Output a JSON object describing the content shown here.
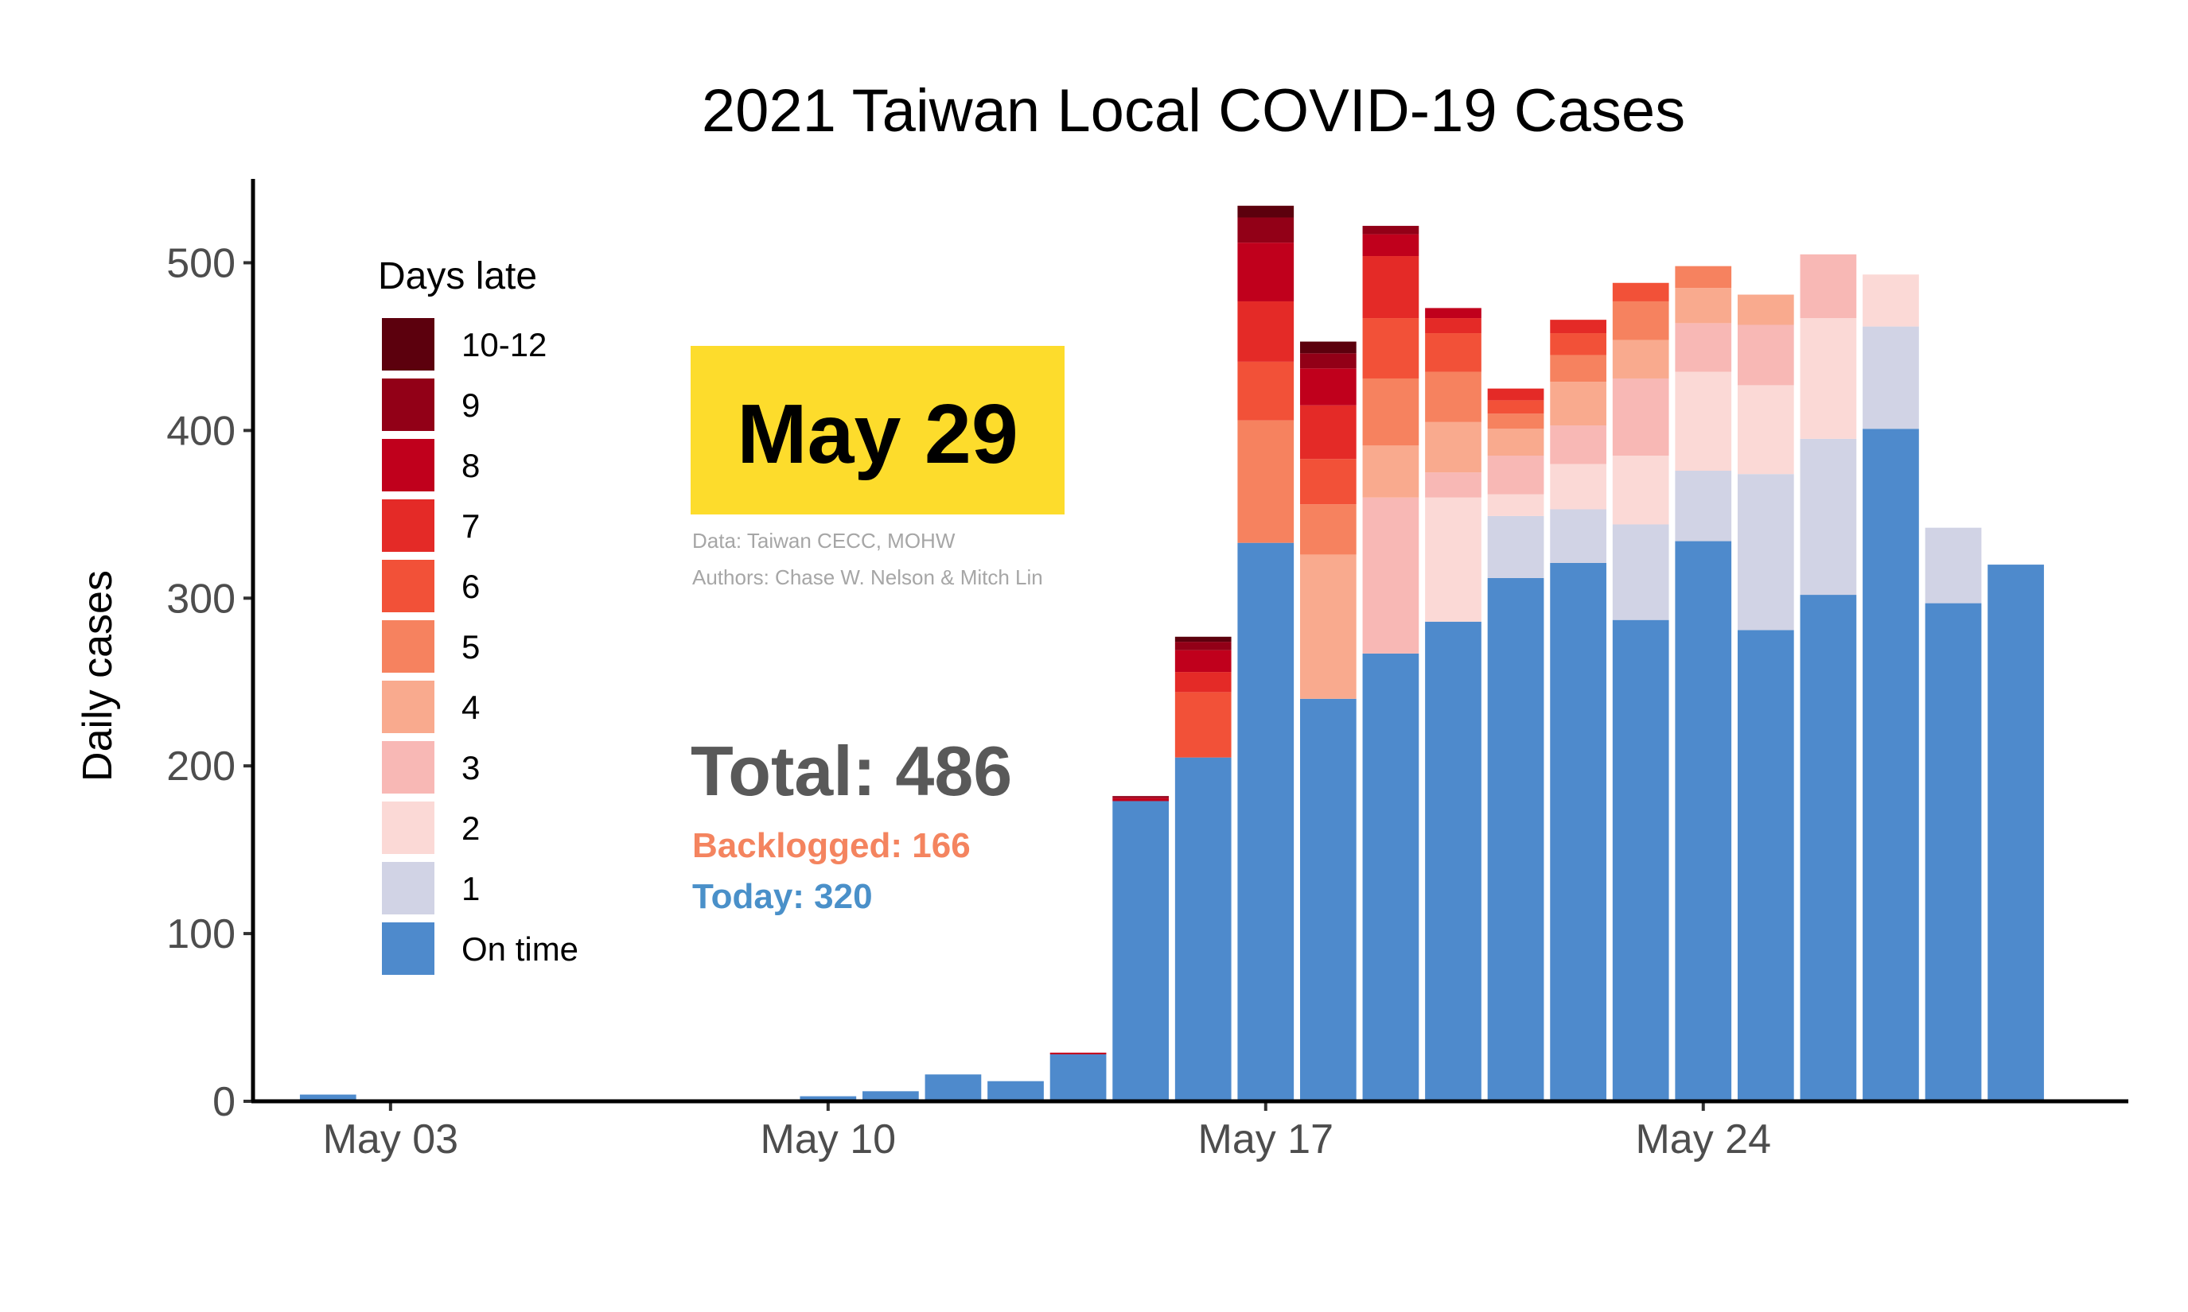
{
  "chart_data": {
    "type": "bar",
    "stacked": true,
    "title": "2021 Taiwan Local COVID-19 Cases",
    "xlabel": "",
    "ylabel": "Daily cases",
    "ylim": [
      0,
      550
    ],
    "yticks": [
      0,
      100,
      200,
      300,
      400,
      500
    ],
    "xticks": [
      {
        "label": "May 03",
        "day": 3
      },
      {
        "label": "May 10",
        "day": 10
      },
      {
        "label": "May 17",
        "day": 17
      },
      {
        "label": "May 24",
        "day": 24
      }
    ],
    "xlim_days": [
      0.8,
      30.8
    ],
    "days": [
      2,
      3,
      4,
      5,
      6,
      7,
      8,
      9,
      10,
      11,
      12,
      13,
      14,
      15,
      16,
      17,
      18,
      19,
      20,
      21,
      22,
      23,
      24,
      25,
      26,
      27,
      28,
      29
    ],
    "legend_title": "Days late",
    "legend_position": "top-left",
    "series": [
      {
        "name": "On time",
        "color": "#4e8acc",
        "values": [
          4,
          1,
          1,
          0,
          0,
          0,
          1,
          0,
          3,
          6,
          16,
          12,
          28,
          179,
          205,
          333,
          240,
          267,
          286,
          312,
          321,
          287,
          334,
          281,
          302,
          401,
          297,
          320
        ]
      },
      {
        "name": "1",
        "color": "#d1d3e5",
        "values": [
          0,
          0,
          0,
          0,
          0,
          0,
          0,
          0,
          0,
          0,
          0,
          0,
          0,
          0,
          0,
          0,
          0,
          0,
          0,
          37,
          32,
          57,
          42,
          93,
          93,
          61,
          45,
          0
        ]
      },
      {
        "name": "2",
        "color": "#fbd9d6",
        "values": [
          0,
          0,
          0,
          0,
          0,
          0,
          0,
          0,
          0,
          0,
          0,
          0,
          0,
          0,
          0,
          0,
          0,
          0,
          74,
          13,
          27,
          41,
          59,
          53,
          72,
          31,
          0,
          0
        ]
      },
      {
        "name": "3",
        "color": "#f8b8b5",
        "values": [
          0,
          0,
          0,
          0,
          0,
          0,
          0,
          0,
          0,
          0,
          0,
          0,
          0,
          0,
          0,
          0,
          0,
          93,
          15,
          23,
          23,
          46,
          29,
          36,
          38,
          0,
          0,
          0
        ]
      },
      {
        "name": "4",
        "color": "#f9aa8e",
        "values": [
          0,
          0,
          0,
          0,
          0,
          0,
          0,
          0,
          0,
          0,
          0,
          0,
          0,
          0,
          0,
          0,
          86,
          31,
          30,
          16,
          26,
          23,
          21,
          18,
          0,
          0,
          0,
          0
        ]
      },
      {
        "name": "5",
        "color": "#f6825f",
        "values": [
          0,
          0,
          0,
          0,
          0,
          0,
          0,
          0,
          0,
          0,
          0,
          0,
          0,
          0,
          0,
          73,
          30,
          40,
          30,
          9,
          16,
          23,
          13,
          0,
          0,
          0,
          0,
          0
        ]
      },
      {
        "name": "6",
        "color": "#f25138",
        "values": [
          0,
          0,
          0,
          0,
          0,
          0,
          0,
          0,
          0,
          0,
          0,
          0,
          0,
          0,
          39,
          35,
          27,
          36,
          23,
          8,
          13,
          11,
          0,
          0,
          0,
          0,
          0,
          0
        ]
      },
      {
        "name": "7",
        "color": "#e42a27",
        "values": [
          0,
          0,
          0,
          0,
          0,
          0,
          0,
          0,
          0,
          0,
          0,
          0,
          0,
          0,
          12,
          36,
          32,
          37,
          9,
          7,
          8,
          0,
          0,
          0,
          0,
          0,
          0,
          0
        ]
      },
      {
        "name": "8",
        "color": "#c0001c",
        "values": [
          0,
          0,
          0,
          0,
          0,
          0,
          0,
          0,
          0,
          0,
          0,
          0,
          1,
          2,
          13,
          35,
          22,
          13,
          6,
          0,
          0,
          0,
          0,
          0,
          0,
          0,
          0,
          0
        ]
      },
      {
        "name": "9",
        "color": "#920017",
        "values": [
          0,
          0,
          0,
          0,
          0,
          0,
          0,
          0,
          0,
          0,
          0,
          0,
          0,
          1,
          5,
          15,
          9,
          5,
          0,
          0,
          0,
          0,
          0,
          0,
          0,
          0,
          0,
          0
        ]
      },
      {
        "name": "10-12",
        "color": "#5c000d",
        "values": [
          0,
          0,
          0,
          0,
          0,
          0,
          0,
          0,
          0,
          0,
          0,
          0,
          0,
          0,
          3,
          7,
          7,
          0,
          0,
          0,
          0,
          0,
          0,
          0,
          0,
          0,
          0,
          0
        ]
      }
    ],
    "annotations": {
      "date": "May 29",
      "date_box_color": "#fddc2c",
      "credit_line1": "Data: Taiwan CECC, MOHW",
      "credit_line2": "Authors: Chase W. Nelson & Mitch Lin",
      "total": "Total: 486",
      "backlogged": "Backlogged: 166",
      "today": "Today: 320"
    }
  }
}
